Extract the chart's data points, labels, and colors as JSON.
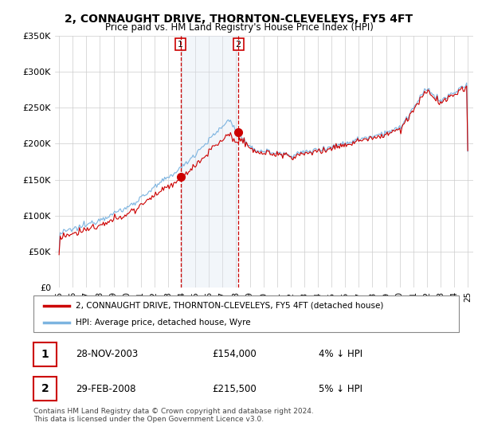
{
  "title": "2, CONNAUGHT DRIVE, THORNTON-CLEVELEYS, FY5 4FT",
  "subtitle": "Price paid vs. HM Land Registry's House Price Index (HPI)",
  "legend_line1": "2, CONNAUGHT DRIVE, THORNTON-CLEVELEYS, FY5 4FT (detached house)",
  "legend_line2": "HPI: Average price, detached house, Wyre",
  "table_row1_date": "28-NOV-2003",
  "table_row1_price": "£154,000",
  "table_row1_hpi": "4% ↓ HPI",
  "table_row2_date": "29-FEB-2008",
  "table_row2_price": "£215,500",
  "table_row2_hpi": "5% ↓ HPI",
  "footnote1": "Contains HM Land Registry data © Crown copyright and database right 2024.",
  "footnote2": "This data is licensed under the Open Government Licence v3.0.",
  "hpi_color": "#7cb4e0",
  "price_color": "#cc0000",
  "shade_color": "#dce6f1",
  "vline_color": "#cc0000",
  "ylim": [
    0,
    350000
  ],
  "yticks": [
    0,
    50000,
    100000,
    150000,
    200000,
    250000,
    300000,
    350000
  ],
  "start_year": 1995,
  "end_year": 2025,
  "purchase1_year": 2003.91,
  "purchase1_price": 154000,
  "purchase2_year": 2008.16,
  "purchase2_price": 215500
}
